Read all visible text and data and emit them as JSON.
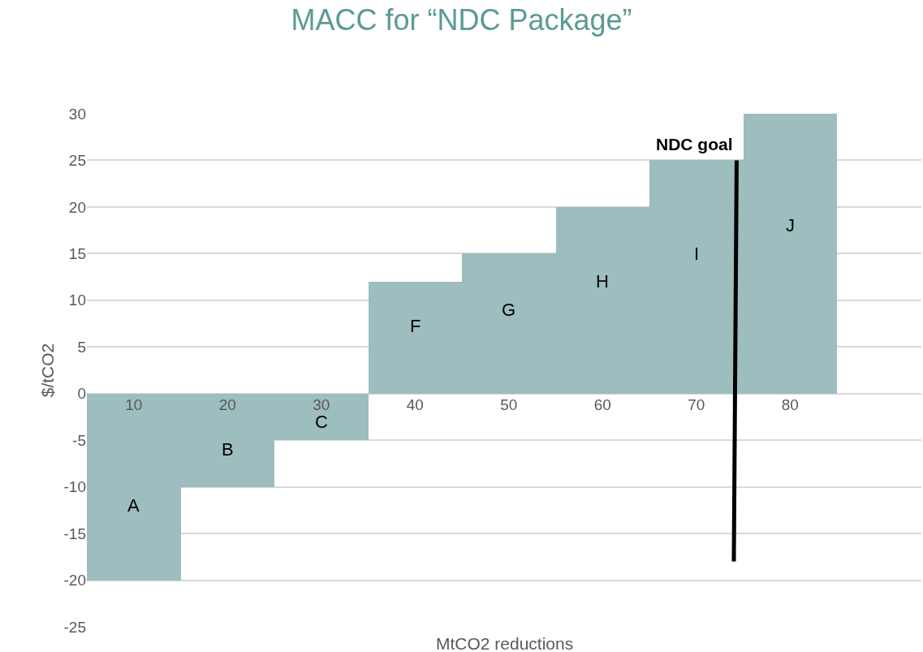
{
  "chart_data": {
    "type": "bar",
    "title": "MACC for “NDC Package”",
    "xlabel": "MtCO2 reductions",
    "ylabel": "$/tCO2",
    "x": [
      10,
      20,
      30,
      40,
      50,
      60,
      70,
      80
    ],
    "series": [
      {
        "color": "#9dbdbe",
        "values": [
          -20,
          -10,
          -5,
          12,
          15,
          20,
          25,
          30
        ]
      },
      {
        "type": "line",
        "name": "NDC goal",
        "color": "#000000",
        "x": [
          74.3,
          74.0
        ],
        "values": [
          25,
          -18
        ]
      }
    ],
    "xlim": [
      5,
      94
    ],
    "xticks": [
      10,
      20,
      30,
      40,
      50,
      60,
      70,
      80
    ],
    "ylim": [
      -25,
      30
    ],
    "yticks": [
      -25,
      -20,
      -15,
      -10,
      -5,
      0,
      5,
      10,
      15,
      20,
      25,
      30
    ],
    "grid": "y",
    "legend": false,
    "annotations": [
      "A",
      "B",
      "C",
      "F",
      "G",
      "H",
      "I",
      "J"
    ]
  }
}
